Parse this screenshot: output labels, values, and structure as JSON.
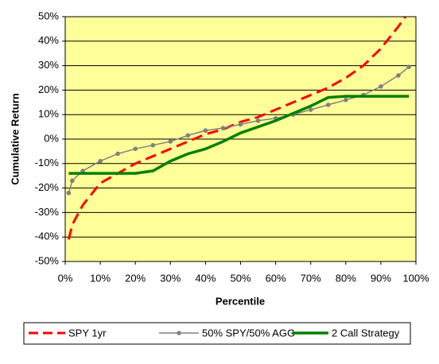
{
  "chart_data": {
    "type": "line",
    "x_label": "Percentile",
    "y_label": "Cumulative Return",
    "x": [
      1,
      2,
      5,
      10,
      15,
      20,
      25,
      30,
      35,
      40,
      45,
      50,
      55,
      60,
      65,
      70,
      75,
      80,
      85,
      90,
      95,
      98
    ],
    "series": [
      {
        "name": "SPY 1yr",
        "color": "#ff0000",
        "dashed": true,
        "markers": false,
        "values": [
          -41,
          -35,
          -27,
          -18,
          -14,
          -10,
          -7,
          -4,
          -1,
          2,
          4,
          7,
          9,
          12,
          15,
          18,
          21,
          25,
          30,
          37,
          46,
          52
        ]
      },
      {
        "name": "50% SPY/50% AGG",
        "color": "#808080",
        "dashed": false,
        "markers": true,
        "values": [
          -22,
          -17,
          -13,
          -9,
          -6,
          -4,
          -2.5,
          -1,
          1.5,
          3.5,
          4.5,
          6,
          7.5,
          8.5,
          10,
          12,
          14,
          16,
          18,
          21.5,
          26,
          29.5
        ]
      },
      {
        "name": "2 Call Strategy",
        "color": "#008000",
        "dashed": false,
        "markers": false,
        "values": [
          -14,
          -14,
          -14,
          -14,
          -14,
          -14,
          -13,
          -9,
          -6,
          -4,
          -1,
          2.5,
          5,
          7.5,
          10.5,
          13.5,
          17,
          17.5,
          17.5,
          17.5,
          17.5,
          17.5
        ]
      }
    ],
    "xlim": [
      0,
      100
    ],
    "xticks": [
      {
        "value": 0,
        "label": "0%"
      },
      {
        "value": 10,
        "label": "10%"
      },
      {
        "value": 20,
        "label": "20%"
      },
      {
        "value": 30,
        "label": "30%"
      },
      {
        "value": 40,
        "label": "40%"
      },
      {
        "value": 50,
        "label": "50%"
      },
      {
        "value": 60,
        "label": "60%"
      },
      {
        "value": 70,
        "label": "70%"
      },
      {
        "value": 80,
        "label": "80%"
      },
      {
        "value": 90,
        "label": "90%"
      },
      {
        "value": 100,
        "label": "100%"
      }
    ],
    "ylim": [
      -50,
      50
    ],
    "yticks": [
      {
        "value": -50,
        "label": "-50%"
      },
      {
        "value": -40,
        "label": "-40%"
      },
      {
        "value": -30,
        "label": "-30%"
      },
      {
        "value": -20,
        "label": "-20%"
      },
      {
        "value": -10,
        "label": "-10%"
      },
      {
        "value": 0,
        "label": "0%"
      },
      {
        "value": 10,
        "label": "10%"
      },
      {
        "value": 20,
        "label": "20%"
      },
      {
        "value": 30,
        "label": "30%"
      },
      {
        "value": 40,
        "label": "40%"
      },
      {
        "value": 50,
        "label": "50%"
      }
    ],
    "grid": true,
    "plot_background": "#ffff99",
    "legend": "bottom"
  }
}
